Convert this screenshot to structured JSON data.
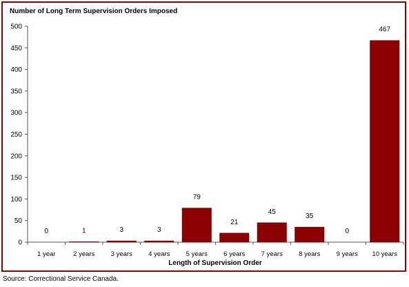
{
  "chart_data": {
    "type": "bar",
    "title": "Number of Long Term Supervision Orders Imposed",
    "xlabel": "Length of Supervision Order",
    "ylabel": "",
    "categories": [
      "1 year",
      "2 years",
      "3 years",
      "4 years",
      "5 years",
      "6 years",
      "7 years",
      "8 years",
      "9 years",
      "10 years"
    ],
    "values": [
      0,
      1,
      3,
      3,
      79,
      21,
      45,
      35,
      0,
      467
    ],
    "data_labels": [
      "0",
      "1",
      "3",
      "3",
      "79",
      "21",
      "45",
      "35",
      "0",
      "467"
    ],
    "ylim": [
      0,
      500
    ],
    "yticks": [
      0,
      50,
      100,
      150,
      200,
      250,
      300,
      350,
      400,
      450,
      500
    ],
    "grid": false,
    "legend": "none",
    "bar_color": "#8b0000",
    "frame_color": "#8b0000"
  },
  "source": "Source: Correctional Service Canada."
}
